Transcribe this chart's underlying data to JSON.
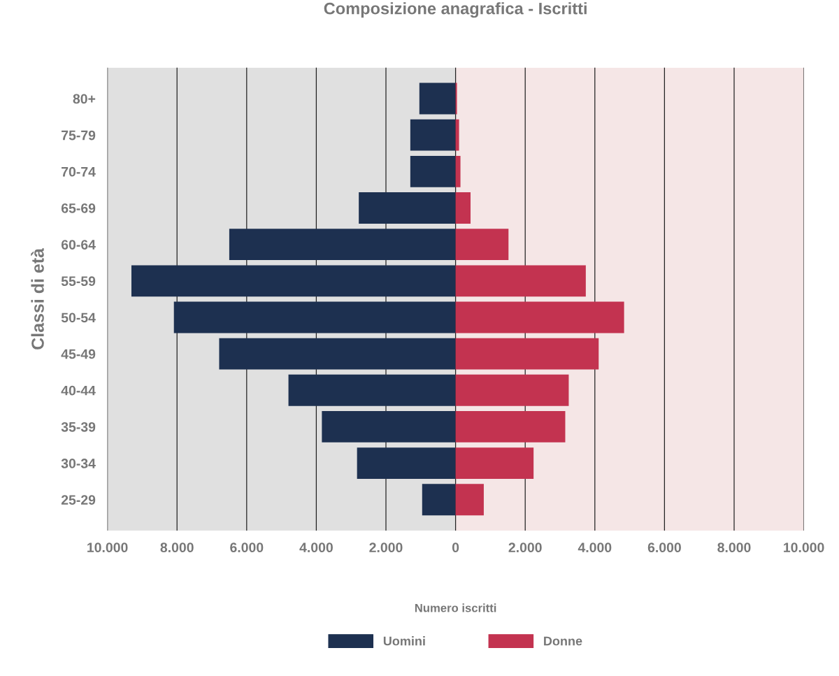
{
  "chart_data": {
    "type": "bar",
    "orientation": "horizontal",
    "title": "Composizione anagrafica - Iscritti",
    "xlabel": "Numero iscritti",
    "ylabel": "Classi di età",
    "categories": [
      "80+",
      "75-79",
      "70-74",
      "65-69",
      "60-64",
      "55-59",
      "50-54",
      "45-49",
      "40-44",
      "35-39",
      "30-34",
      "25-29"
    ],
    "series": [
      {
        "name": "Uomini",
        "color": "#1d3050",
        "values": [
          -1040,
          -1300,
          -1300,
          -2780,
          -6500,
          -9310,
          -8090,
          -6790,
          -4800,
          -3840,
          -2830,
          -960
        ]
      },
      {
        "name": "Donne",
        "color": "#c33350",
        "values": [
          40,
          100,
          140,
          430,
          1520,
          3740,
          4840,
          4110,
          3250,
          3150,
          2240,
          810
        ]
      }
    ],
    "bands": [
      {
        "axis": "x",
        "from": -10000,
        "to": 0,
        "color": "#e0e0e0"
      },
      {
        "axis": "x",
        "from": 0,
        "to": 10000,
        "color": "#f5e6e6"
      }
    ],
    "xlim": [
      -10000,
      10000
    ],
    "xticks": [
      {
        "value": -10000,
        "label": "10.000"
      },
      {
        "value": -8000,
        "label": "8.000"
      },
      {
        "value": -6000,
        "label": "6.000"
      },
      {
        "value": -4000,
        "label": "4.000"
      },
      {
        "value": -2000,
        "label": "2.000"
      },
      0,
      {
        "value": 2000,
        "label": "2.000"
      },
      {
        "value": 4000,
        "label": "4.000"
      },
      {
        "value": 6000,
        "label": "6.000"
      },
      {
        "value": 8000,
        "label": "8.000"
      },
      {
        "value": 10000,
        "label": "10.000"
      }
    ],
    "grid": "x",
    "legend": "bottom",
    "stacked": true
  }
}
